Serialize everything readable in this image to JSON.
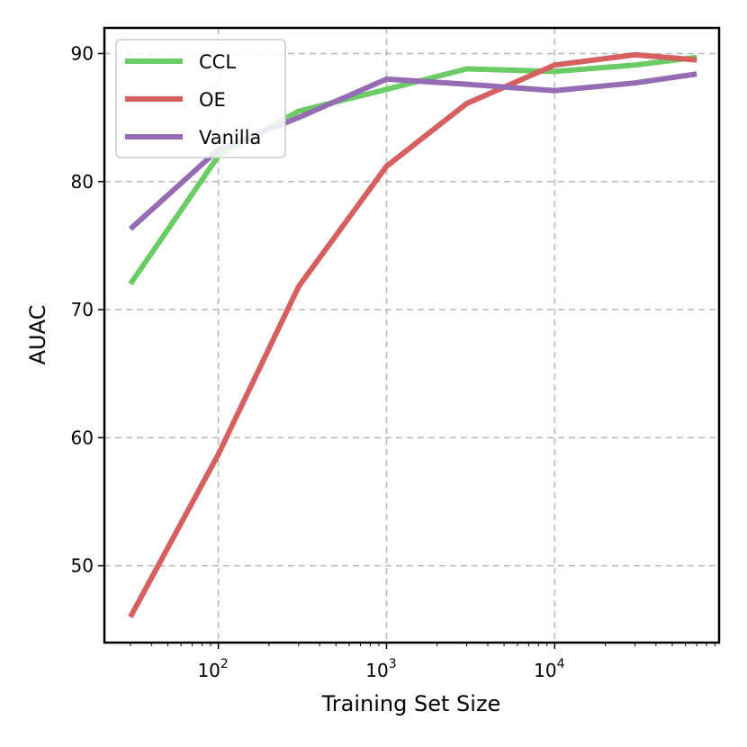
{
  "chart_data": {
    "type": "line",
    "title": "",
    "xlabel": "Training Set Size",
    "ylabel": "AUAC",
    "xscale": "log",
    "xlim": [
      21,
      95000
    ],
    "ylim": [
      44,
      92
    ],
    "xticks": [
      {
        "value": 100,
        "base": "10",
        "exp": "2"
      },
      {
        "value": 1000,
        "base": "10",
        "exp": "3"
      },
      {
        "value": 10000,
        "base": "10",
        "exp": "4"
      }
    ],
    "yticks": [
      50,
      60,
      70,
      80,
      90
    ],
    "grid": true,
    "legend_position": "top-left",
    "x": [
      30,
      100,
      300,
      1000,
      3000,
      10000,
      30000,
      70000
    ],
    "series": [
      {
        "name": "CCL",
        "color": "#6acc64",
        "values": [
          72.0,
          82.0,
          85.5,
          87.2,
          88.8,
          88.6,
          89.1,
          89.7
        ]
      },
      {
        "name": "OE",
        "color": "#d65f5f",
        "values": [
          46.0,
          58.7,
          71.8,
          81.2,
          86.1,
          89.1,
          89.9,
          89.5
        ]
      },
      {
        "name": "Vanilla",
        "color": "#956cb4",
        "values": [
          76.3,
          82.5,
          85.0,
          88.0,
          87.6,
          87.1,
          87.7,
          88.4
        ]
      }
    ]
  }
}
